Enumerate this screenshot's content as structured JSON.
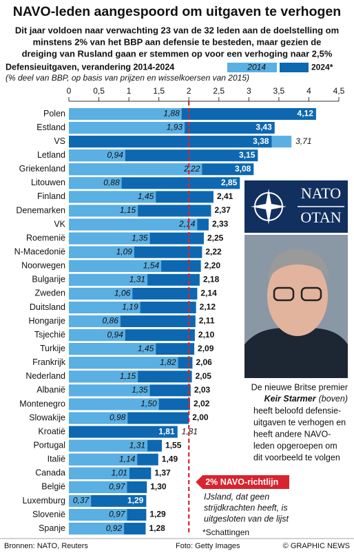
{
  "chart_data": {
    "type": "bar",
    "orientation": "horizontal",
    "title": "NAVO-leden aangespoord om uitgaven te verhogen",
    "subtitle": [
      "Dit jaar voldoen naar verwachting 23 van de 32 leden aan de doelstelling om",
      "minstens 2% van het BBP aan defensie te besteden, maar gezien de",
      "dreiging van Rusland gaan er stemmen op voor een verhoging naar 2,5%"
    ],
    "chart_title": "Defensieuitgaven, verandering 2014-2024",
    "chart_subtitle": "(% deel van BBP, op basis van prijzen en wisselkoersen van 2015)",
    "categories": [
      "Polen",
      "Estland",
      "VS",
      "Letland",
      "Griekenland",
      "Litouwen",
      "Finland",
      "Denemarken",
      "VK",
      "Roemenië",
      "N-Macedonië",
      "Noorwegen",
      "Bulgarije",
      "Zweden",
      "Duitsland",
      "Hongarije",
      "Tsjechië",
      "Turkije",
      "Frankrijk",
      "Nederland",
      "Albanië",
      "Montenegro",
      "Slowakije",
      "Kroatië",
      "Portugal",
      "Italië",
      "Canada",
      "België",
      "Luxemburg",
      "Slovenië",
      "Spanje"
    ],
    "series": [
      {
        "name": "2014",
        "color": "#5aafe3",
        "values": [
          1.88,
          1.93,
          3.71,
          0.94,
          2.22,
          0.88,
          1.45,
          1.15,
          2.14,
          1.35,
          1.09,
          1.54,
          1.31,
          1.06,
          1.19,
          0.86,
          0.94,
          1.45,
          1.82,
          1.15,
          1.35,
          1.5,
          0.98,
          1.81,
          1.31,
          1.14,
          1.01,
          0.97,
          0.37,
          0.97,
          0.92
        ],
        "value_labels": [
          "1,88",
          "1,93",
          "3,71",
          "0,94",
          "2,22",
          "0,88",
          "1,45",
          "1,15",
          "2,14",
          "1,35",
          "1,09",
          "1,54",
          "1,31",
          "1,06",
          "1,19",
          "0,86",
          "0,94",
          "1,45",
          "1,82",
          "1,15",
          "1,35",
          "1,50",
          "0,98",
          "1,81",
          "1,31",
          "1,14",
          "1,01",
          "0,97",
          "0,37",
          "0,97",
          "0,92"
        ]
      },
      {
        "name": "2024*",
        "color": "#0d68b1",
        "values": [
          4.12,
          3.43,
          3.38,
          3.15,
          3.08,
          2.85,
          2.41,
          2.37,
          2.33,
          2.25,
          2.22,
          2.2,
          2.18,
          2.14,
          2.12,
          2.11,
          2.1,
          2.09,
          2.06,
          2.05,
          2.03,
          2.02,
          2.0,
          1.81,
          1.55,
          1.49,
          1.37,
          1.3,
          1.29,
          1.29,
          1.28
        ],
        "value_labels": [
          "4,12",
          "3,43",
          "3,38",
          "3,15",
          "3,08",
          "2,85",
          "2,41",
          "2,37",
          "2,33",
          "2,25",
          "2,22",
          "2,20",
          "2,18",
          "2,14",
          "2,12",
          "2,11",
          "2,10",
          "2,09",
          "2,06",
          "2,05",
          "2,03",
          "2,02",
          "2,00",
          "1,81",
          "1,55",
          "1,49",
          "1,37",
          "1,30",
          "1,29",
          "1,29",
          "1,28"
        ]
      }
    ],
    "xlim": [
      0,
      4.5
    ],
    "xticks": [
      0,
      {
        "value": 0.5,
        "label": "0,5"
      },
      1,
      {
        "value": 1.5,
        "label": "1,5"
      },
      2,
      {
        "value": 2.5,
        "label": "2,5"
      },
      3,
      {
        "value": 3.5,
        "label": "3,5"
      },
      4,
      {
        "value": 4.5,
        "label": "4,5"
      }
    ],
    "reference_line": {
      "value": 2,
      "label": "2% NAVO-richtlijn",
      "color": "#d9232e"
    },
    "logo": {
      "top": "NATO",
      "bottom": "OTAN"
    },
    "caption": {
      "first": "De nieuwe Britse premier",
      "name": "Keir Starmer",
      "name_note": "(boven)",
      "rest": [
        "heeft beloofd defensie-",
        "uitgaven te verhogen en",
        "heeft andere NAVO-",
        "leden opgeroepen om",
        "dit voorbeeld te volgen"
      ]
    },
    "note": [
      "IJsland, dat geen",
      "strijdkrachten heeft, is",
      "uitgesloten van de lijst"
    ],
    "footnote": "*Schattingen",
    "sources": "Bronnen: NATO, Reuters",
    "photo_credit": "Foto: Getty Images",
    "credit": "© GRAPHIC NEWS"
  }
}
